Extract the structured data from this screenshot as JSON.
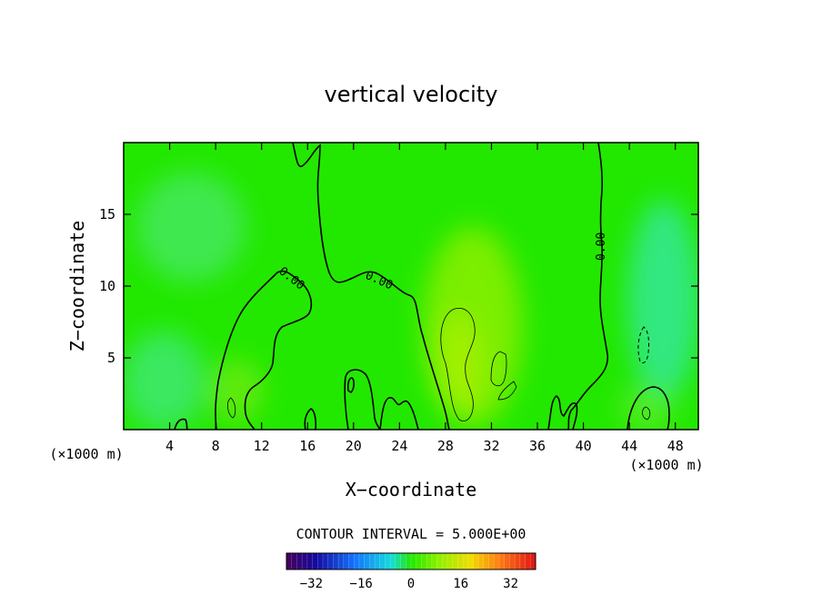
{
  "chart_data": {
    "type": "contour",
    "title": "vertical velocity",
    "xlabel": "X−coordinate",
    "ylabel": "Z−coordinate",
    "x_unit_left": "(×1000 m)",
    "x_unit_right": "(×1000 m)",
    "xlim": [
      0,
      50
    ],
    "ylim": [
      0,
      20
    ],
    "xticks": [
      {
        "value": 4,
        "label": "4"
      },
      {
        "value": 8,
        "label": "8"
      },
      {
        "value": 12,
        "label": "12"
      },
      {
        "value": 16,
        "label": "16"
      },
      {
        "value": 20,
        "label": "20"
      },
      {
        "value": 24,
        "label": "24"
      },
      {
        "value": 28,
        "label": "28"
      },
      {
        "value": 32,
        "label": "32"
      },
      {
        "value": 36,
        "label": "36"
      },
      {
        "value": 40,
        "label": "40"
      },
      {
        "value": 44,
        "label": "44"
      },
      {
        "value": 48,
        "label": "48"
      }
    ],
    "yticks": [
      {
        "value": 5,
        "label": "5"
      },
      {
        "value": 10,
        "label": "10"
      },
      {
        "value": 15,
        "label": "15"
      }
    ],
    "contour_labels": [
      "0.00",
      "0.00",
      "0.00"
    ],
    "contour_interval_text": "CONTOUR INTERVAL = 5.000E+00",
    "colorbar": {
      "range": [
        -40,
        40
      ],
      "ticks": [
        {
          "value": -32,
          "label": "−32"
        },
        {
          "value": -16,
          "label": "−16"
        },
        {
          "value": 0,
          "label": "0"
        },
        {
          "value": 16,
          "label": "16"
        },
        {
          "value": 32,
          "label": "32"
        }
      ]
    },
    "colors": {
      "background_field": "#22e800",
      "positive_blob": "#8cf000",
      "negative_blob": "#22e870",
      "contour_line": "#000000"
    }
  }
}
